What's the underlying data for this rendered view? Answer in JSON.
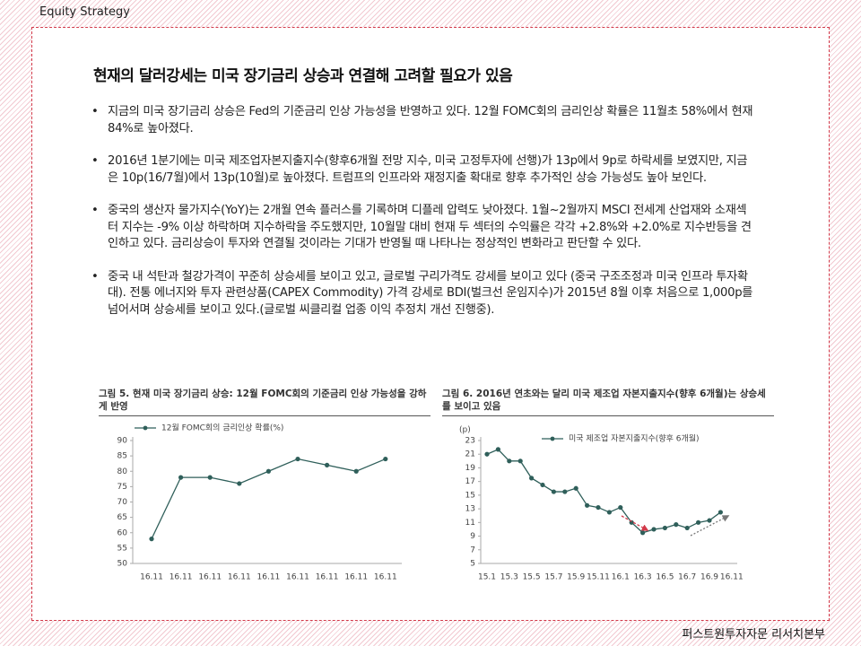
{
  "header": "Equity Strategy",
  "title": "현재의 달러강세는 미국 장기금리 상승과 연결해 고려할 필요가 있음",
  "bullets": [
    "지금의 미국 장기금리 상승은 Fed의 기준금리 인상 가능성을 반영하고 있다. 12월 FOMC회의 금리인상 확률은 11월초 58%에서 현재 84%로 높아졌다.",
    "2016년 1분기에는 미국 제조업자본지출지수(향후6개월 전망 지수, 미국 고정투자에 선행)가 13p에서 9p로 하락세를 보였지만, 지금은 10p(16/7월)에서 13p(10월)로 높아졌다. 트럼프의 인프라와 재정지출 확대로 향후 추가적인 상승 가능성도 높아 보인다.",
    "중국의 생산자 물가지수(YoY)는 2개월 연속 플러스를 기록하며 디플레 압력도 낮아졌다. 1월~2월까지 MSCI 전세계 산업재와 소재섹터 지수는 -9% 이상 하락하며 지수하락을 주도했지만, 10월말 대비 현재 두 섹터의 수익률은 각각 +2.8%와 +2.0%로 지수반등을 견인하고 있다. 금리상승이 투자와 연결될 것이라는 기대가 반영될 때 나타나는 정상적인 변화라고 판단할 수 있다.",
    "중국 내 석탄과 철강가격이 꾸준히 상승세를 보이고 있고, 글로벌 구리가격도 강세를 보이고 있다 (중국 구조조정과 미국 인프라 투자확대). 전통 에너지와 투자 관련상품(CAPEX Commodity) 가격 강세로 BDI(벌크선 운임지수)가 2015년 8월 이후 처음으로 1,000p를 넘어서며 상승세를 보이고 있다.(글로벌 씨클리컬 업종 이익 추정치 개선 진행중)."
  ],
  "chart_data": [
    {
      "type": "line",
      "title": "그림 5. 현재 미국 장기금리 상승: 12월 FOMC회의 기준금리 인상 가능성을 강하게 반영",
      "categories": [
        "16.11",
        "16.11",
        "16.11",
        "16.11",
        "16.11",
        "16.11",
        "16.11",
        "16.11",
        "16.11"
      ],
      "series": [
        {
          "name": "12월 FOMC회의 금리인상 확률(%)",
          "color": "#2f5f5a",
          "values": [
            58,
            78,
            78,
            76,
            80,
            84,
            82,
            80,
            84
          ]
        }
      ],
      "ylim": [
        50,
        90
      ],
      "yticks": [
        50,
        55,
        60,
        65,
        70,
        75,
        80,
        85,
        90
      ]
    },
    {
      "type": "line",
      "title": "그림 6. 2016년 연초와는 달리 미국 제조업 자본지출지수(향후 6개월)는 상승세를 보이고 있음",
      "y_unit": "(p)",
      "categories": [
        "15.1",
        null,
        "15.3",
        null,
        "15.5",
        null,
        "15.7",
        null,
        "15.9",
        null,
        "15.11",
        null,
        "16.1",
        null,
        "16.3",
        null,
        "16.5",
        null,
        "16.7",
        null,
        "16.9",
        null,
        "16.11"
      ],
      "series": [
        {
          "name": "미국 제조업 자본지출지수(향후 6개월)",
          "color": "#2f5f5a",
          "values": [
            21,
            21.7,
            20,
            20,
            17.5,
            16.5,
            15.5,
            15.5,
            16,
            13.5,
            13.2,
            12.5,
            13.2,
            11,
            9.5,
            10,
            10.2,
            10.7,
            10.2,
            11,
            11.3,
            12.5,
            null
          ]
        }
      ],
      "ylim": [
        5,
        23
      ],
      "yticks": [
        5,
        7,
        9,
        11,
        13,
        15,
        17,
        19,
        21,
        23
      ]
    }
  ],
  "footer": "퍼스트원투자자문 리서치본부"
}
